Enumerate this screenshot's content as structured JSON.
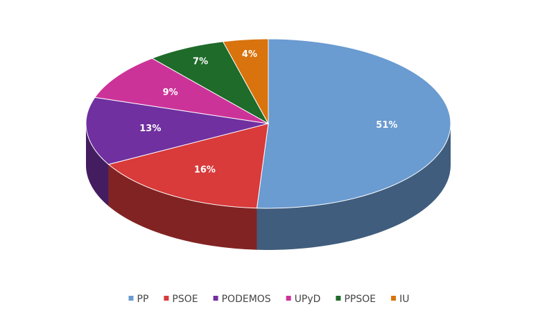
{
  "chart_data": {
    "type": "pie",
    "categories": [
      "PP",
      "PSOE",
      "PODEMOS",
      "UPyD",
      "PPSOE",
      "IU"
    ],
    "values": [
      51,
      16,
      13,
      9,
      7,
      4
    ],
    "value_labels": [
      "51%",
      "16%",
      "13%",
      "9%",
      "7%",
      "4%"
    ],
    "colors": [
      "#6a9bd1",
      "#d93a3a",
      "#7030a0",
      "#cc3399",
      "#1e6b2a",
      "#d9730d"
    ],
    "legend": "bottom"
  }
}
